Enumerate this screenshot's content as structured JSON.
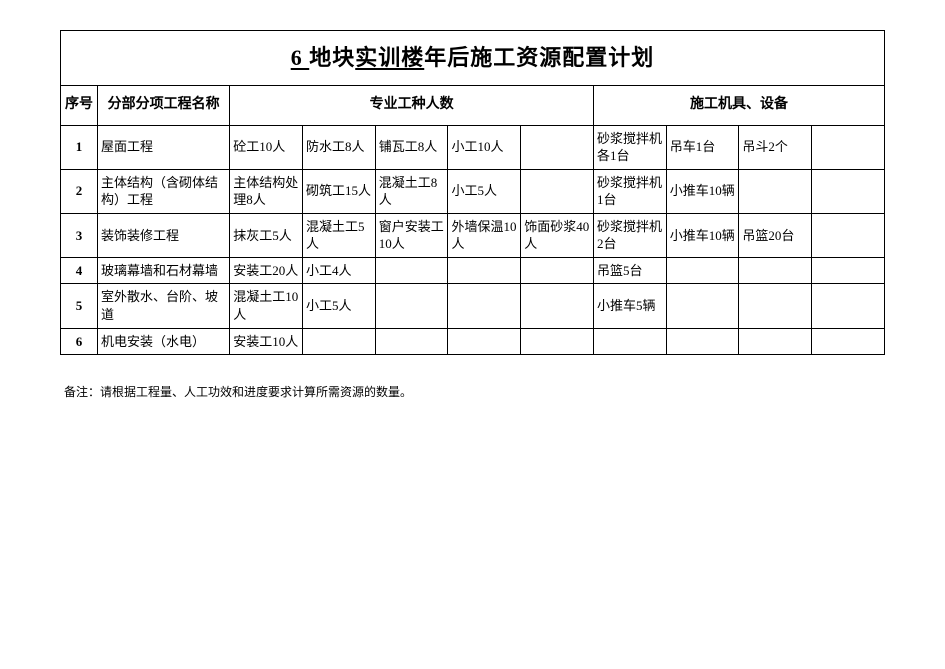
{
  "title_seg1": " 6 ",
  "title_seg2": "地块",
  "title_seg3": "实训楼",
  "title_seg4": "年后施工资源配置计划",
  "headers": {
    "seq": "序号",
    "name": "分部分项工程名称",
    "workers": "专业工种人数",
    "equipment": "施工机具、设备"
  },
  "rows": [
    {
      "seq": "1",
      "name": "屋面工程",
      "w": [
        "砼工10人",
        "防水工8人",
        "铺瓦工8人",
        "小工10人",
        ""
      ],
      "e": [
        "砂浆搅拌机各1台",
        "吊车1台",
        "吊斗2个",
        ""
      ]
    },
    {
      "seq": "2",
      "name": "主体结构（含砌体结构）工程",
      "w": [
        "主体结构处理8人",
        "砌筑工15人",
        "混凝土工8人",
        "小工5人",
        ""
      ],
      "e": [
        "砂浆搅拌机1台",
        "小推车10辆",
        "",
        ""
      ]
    },
    {
      "seq": "3",
      "name": "装饰装修工程",
      "w": [
        "抹灰工5人",
        "混凝土工5人",
        "窗户安装工10人",
        "外墙保温10人",
        "饰面砂浆40人"
      ],
      "e": [
        "砂浆搅拌机2台",
        "小推车10辆",
        "吊篮20台",
        ""
      ]
    },
    {
      "seq": "4",
      "name": "玻璃幕墙和石材幕墙",
      "w": [
        "安装工20人",
        "小工4人",
        "",
        "",
        ""
      ],
      "e": [
        "吊篮5台",
        "",
        "",
        ""
      ]
    },
    {
      "seq": "5",
      "name": "室外散水、台阶、坡道",
      "w": [
        "混凝土工10人",
        "小工5人",
        "",
        "",
        ""
      ],
      "e": [
        "小推车5辆",
        "",
        "",
        ""
      ]
    },
    {
      "seq": "6",
      "name": "机电安装（水电）",
      "w": [
        "安装工10人",
        "",
        "",
        "",
        ""
      ],
      "e": [
        "",
        "",
        "",
        ""
      ]
    }
  ],
  "note": "备注：请根据工程量、人工功效和进度要求计算所需资源的数量。"
}
